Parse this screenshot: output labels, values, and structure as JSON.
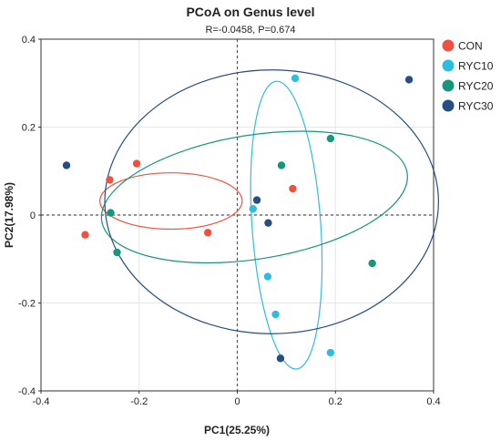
{
  "chart_data": {
    "type": "scatter",
    "title": "PCoA on Genus level",
    "subtitle": "R=-0.0458, P=0.674",
    "xlabel": "PC1(25.25%)",
    "ylabel": "PC2(17.98%)",
    "xlim": [
      -0.4,
      0.4
    ],
    "ylim": [
      -0.4,
      0.4
    ],
    "xticks": [
      "-0.4",
      "-0.2",
      "0",
      "0.2",
      "0.4"
    ],
    "yticks": [
      "0.4",
      "0.2",
      "0",
      "-0.2",
      "-0.4"
    ],
    "grid": true,
    "legend_position": "top-right",
    "series": [
      {
        "name": "CON",
        "color": "#F0513F",
        "points": [
          [
            -0.26,
            0.08
          ],
          [
            -0.205,
            0.117
          ],
          [
            0.113,
            0.06
          ],
          [
            -0.31,
            -0.045
          ],
          [
            -0.06,
            -0.04
          ]
        ]
      },
      {
        "name": "RYC10",
        "color": "#2DBEDF",
        "points": [
          [
            0.118,
            0.311
          ],
          [
            0.032,
            0.014
          ],
          [
            0.062,
            -0.14
          ],
          [
            0.078,
            -0.226
          ],
          [
            0.19,
            -0.313
          ]
        ]
      },
      {
        "name": "RYC20",
        "color": "#16967A",
        "points": [
          [
            0.19,
            0.174
          ],
          [
            0.09,
            0.113
          ],
          [
            -0.258,
            0.005
          ],
          [
            -0.245,
            -0.085
          ],
          [
            0.275,
            -0.11
          ]
        ]
      },
      {
        "name": "RYC30",
        "color": "#274E82",
        "points": [
          [
            0.35,
            0.308
          ],
          [
            -0.348,
            0.113
          ],
          [
            0.04,
            0.034
          ],
          [
            0.063,
            -0.018
          ],
          [
            0.088,
            -0.326
          ]
        ]
      }
    ],
    "ellipses": [
      {
        "name": "CON",
        "color": "#F0513F",
        "cx": -0.135,
        "cy": 0.032,
        "rx": 0.145,
        "ry": 0.064,
        "angle": 0
      },
      {
        "name": "RYC10",
        "color": "#2DBEDF",
        "cx": 0.1,
        "cy": -0.023,
        "rx": 0.07,
        "ry": 0.328,
        "angle": -4
      },
      {
        "name": "RYC20",
        "color": "#16967A",
        "cx": 0.035,
        "cy": 0.041,
        "rx": 0.315,
        "ry": 0.141,
        "angle": -9
      },
      {
        "name": "RYC30",
        "color": "#274E82",
        "cx": 0.07,
        "cy": 0.03,
        "rx": 0.34,
        "ry": 0.3,
        "angle": 0
      }
    ]
  }
}
